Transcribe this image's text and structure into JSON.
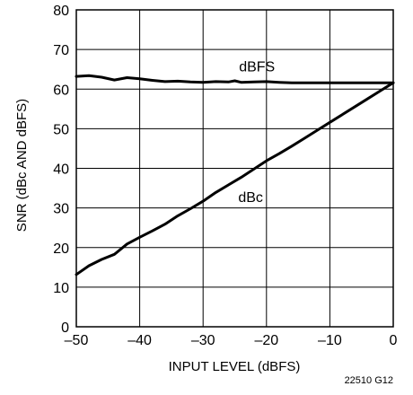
{
  "chart_data": {
    "type": "line",
    "title": "",
    "xlabel": "INPUT LEVEL (dBFS)",
    "ylabel": "SNR (dBc AND dBFS)",
    "xlim": [
      -50,
      0
    ],
    "ylim": [
      0,
      80
    ],
    "xticks": [
      -50,
      -40,
      -30,
      -20,
      -10,
      0
    ],
    "yticks": [
      0,
      10,
      20,
      30,
      40,
      50,
      60,
      70,
      80
    ],
    "xtick_labels": [
      "–50",
      "–40",
      "–30",
      "–20",
      "–10",
      "0"
    ],
    "ytick_labels": [
      "0",
      "10",
      "20",
      "30",
      "40",
      "50",
      "60",
      "70",
      "80"
    ],
    "grid": true,
    "legend": "none",
    "series": [
      {
        "name": "dBFS",
        "x": [
          -50,
          -48,
          -46,
          -44,
          -42,
          -40,
          -38,
          -36,
          -34,
          -32,
          -30,
          -28,
          -26,
          -25,
          -24,
          -22,
          -20,
          -18,
          -16,
          -14,
          -12,
          -10,
          -8,
          -6,
          -4,
          -2,
          0
        ],
        "y": [
          63.2,
          63.4,
          63.0,
          62.3,
          62.9,
          62.6,
          62.2,
          61.9,
          62.0,
          61.8,
          61.7,
          61.9,
          61.8,
          62.1,
          61.7,
          61.8,
          61.9,
          61.7,
          61.6,
          61.6,
          61.6,
          61.6,
          61.6,
          61.6,
          61.6,
          61.6,
          61.6
        ]
      },
      {
        "name": "dBc",
        "x": [
          -50,
          -48,
          -46,
          -44,
          -42,
          -40,
          -38,
          -36,
          -34,
          -32,
          -30,
          -28,
          -26,
          -24,
          -22,
          -20,
          -18,
          -16,
          -14,
          -12,
          -10,
          -8,
          -6,
          -4,
          -2,
          0
        ],
        "y": [
          13.2,
          15.4,
          17.0,
          18.3,
          20.9,
          22.6,
          24.2,
          25.9,
          28.0,
          29.8,
          31.7,
          33.9,
          35.8,
          37.7,
          39.8,
          41.9,
          43.7,
          45.6,
          47.6,
          49.6,
          51.6,
          53.6,
          55.6,
          57.6,
          59.6,
          61.6
        ]
      }
    ],
    "annotations": [
      {
        "text": "dBFS",
        "x": -21.5,
        "y": 64.5
      },
      {
        "text": "dBc",
        "x": -22.5,
        "y": 31.5
      }
    ]
  },
  "figure_id": "22510 G12"
}
